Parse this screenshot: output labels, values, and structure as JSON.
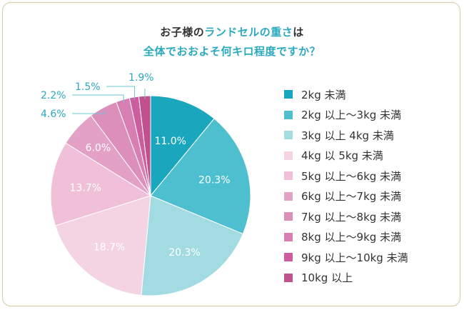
{
  "title": {
    "line1_pre": "お子様の",
    "line1_accent": "ランドセルの重さ",
    "line1_post": "は",
    "line2": "全体でおおよそ何キロ程度ですか？"
  },
  "chart_data": {
    "type": "pie",
    "title": "お子様のランドセルの重さは全体でおおよそ何キロ程度ですか？",
    "labels": [
      "2kg 未満",
      "2kg 以上～3kg 未満",
      "3kg 以上 4kg 未満",
      "4kg 以 5kg 未満",
      "5kg 以上～6kg 未満",
      "6kg 以上～7kg 未満",
      "7kg 以上～8kg 未満",
      "8kg 以上～9kg 未満",
      "9kg 以上～10kg 未満",
      "10kg 以上"
    ],
    "values": [
      11.0,
      20.3,
      20.3,
      18.7,
      13.7,
      6.0,
      4.6,
      2.2,
      1.5,
      1.9
    ],
    "value_labels": [
      "11.0%",
      "20.3%",
      "20.3%",
      "18.7%",
      "13.7%",
      "6.0%",
      "4.6%",
      "2.2%",
      "1.5%",
      "1.9%"
    ],
    "colors": [
      "#1aa6bd",
      "#4ebfcf",
      "#a3dbe3",
      "#f4d3e3",
      "#f0bfd8",
      "#e3a1c6",
      "#dd8fbb",
      "#d77fb2",
      "#cd5d9e",
      "#c1508f"
    ],
    "label_colors": [
      "#ffffff",
      "#ffffff",
      "#ffffff",
      "#ffffff",
      "#ffffff",
      "#ffffff",
      "#2aa9bf",
      "#2aa9bf",
      "#2aa9bf",
      "#2aa9bf"
    ],
    "legend_position": "right"
  }
}
